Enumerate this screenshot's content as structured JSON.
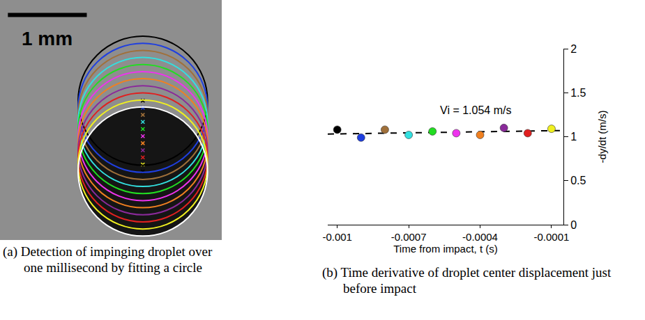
{
  "chart_data": [
    {
      "type": "circle_fit",
      "caption": "(a) Detection of impinging droplet over one millisecond by fitting a circle",
      "scale_bar": {
        "label": "1 mm",
        "length": 1
      },
      "xlim": [
        0,
        2.81
      ],
      "ylim": [
        0,
        3.05
      ],
      "tick_labels": false,
      "radius": 0.82,
      "circles": [
        {
          "color": "#000000",
          "x": 1.81,
          "y": 1.77
        },
        {
          "color": "#1f3fe0",
          "x": 1.81,
          "y": 1.68
        },
        {
          "color": "#a0703a",
          "x": 1.81,
          "y": 1.59
        },
        {
          "color": "#33e0e0",
          "x": 1.81,
          "y": 1.5
        },
        {
          "color": "#22dd22",
          "x": 1.81,
          "y": 1.41
        },
        {
          "color": "#ee33ee",
          "x": 1.81,
          "y": 1.32
        },
        {
          "color": "#f08020",
          "x": 1.81,
          "y": 1.23
        },
        {
          "color": "#8a2a9a",
          "x": 1.81,
          "y": 1.14
        },
        {
          "color": "#e02020",
          "x": 1.81,
          "y": 1.05
        },
        {
          "color": "#f0f020",
          "x": 1.81,
          "y": 0.96
        },
        {
          "color": "#ffffff",
          "x": 1.81,
          "y": 0.87
        }
      ]
    },
    {
      "type": "scatter",
      "caption": "(b) Time derivative of droplet center displacement just before impact",
      "x_label": "Time from impact, t (s)",
      "y_label": "-dy/dt (m/s)",
      "x": [
        -0.001,
        -0.0009,
        -0.0008,
        -0.0007,
        -0.0006,
        -0.0005,
        -0.0004,
        -0.0003,
        -0.0002,
        -0.0001
      ],
      "values": [
        1.08,
        0.99,
        1.08,
        1.02,
        1.06,
        1.04,
        1.02,
        1.1,
        1.04,
        1.09
      ],
      "colors": [
        "#000000",
        "#1f3fe0",
        "#a0703a",
        "#33e0e0",
        "#22dd22",
        "#ee33ee",
        "#f08020",
        "#8a2a9a",
        "#e02020",
        "#f0f020"
      ],
      "marker": "circle",
      "fit": {
        "x": [
          -0.00104,
          -5e-05
        ],
        "values": [
          1.03,
          1.07
        ],
        "line_style": "dash",
        "color": "#000000"
      },
      "annotations": [
        {
          "text": "Vi = 1.054 m/s",
          "x": -0.00042,
          "y": 1.3
        }
      ],
      "xlim": [
        -0.00104,
        -5e-05
      ],
      "ylim": [
        0,
        2
      ],
      "xticks": [
        -0.001,
        -0.0007,
        -0.0004,
        -0.0001
      ],
      "yticks": [
        0,
        0.5,
        1,
        1.5,
        2
      ],
      "grid": false
    }
  ]
}
